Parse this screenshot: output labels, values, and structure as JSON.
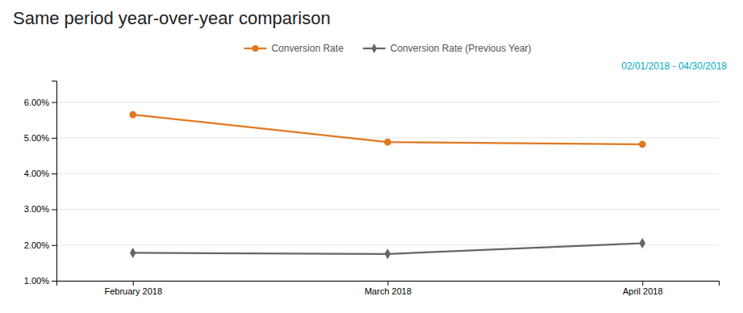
{
  "chart_data": {
    "type": "line",
    "title": "Same period year-over-year comparison",
    "subtitle": "02/01/2018 - 04/30/2018",
    "categories": [
      "February 2018",
      "March 2018",
      "April 2018"
    ],
    "series": [
      {
        "name": "Conversion Rate",
        "color": "#e07820",
        "marker": "circle",
        "values": [
          5.65,
          4.88,
          4.82
        ]
      },
      {
        "name": "Conversion Rate (Previous Year)",
        "color": "#666666",
        "marker": "diamond",
        "values": [
          1.78,
          1.75,
          2.05
        ]
      }
    ],
    "ylim": [
      1.0,
      6.6
    ],
    "yticks": [
      {
        "value": 1.0,
        "label": "1.00%"
      },
      {
        "value": 2.0,
        "label": "2.00%"
      },
      {
        "value": 3.0,
        "label": "3.00%"
      },
      {
        "value": 4.0,
        "label": "4.00%"
      },
      {
        "value": 5.0,
        "label": "5.00%"
      },
      {
        "value": 6.0,
        "label": "6.00%"
      }
    ],
    "grid": true,
    "legend": "top"
  }
}
